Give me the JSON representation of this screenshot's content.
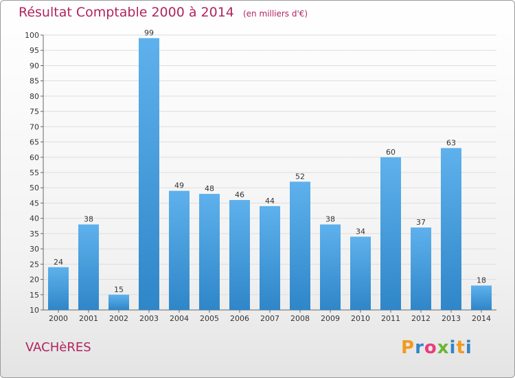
{
  "header": {
    "title": "Résultat Comptable 2000 à 2014",
    "unit": "(en milliers d'€)"
  },
  "footer": {
    "commune": "VACHèRES",
    "logo": "Proxiti"
  },
  "colors": {
    "title": "#b0245d",
    "bar_light": "#5eb1ec",
    "bar_dark": "#2f86c8"
  },
  "chart_data": {
    "type": "bar",
    "title": "Résultat Comptable 2000 à 2014",
    "subtitle": "(en milliers d'€)",
    "categories": [
      "2000",
      "2001",
      "2002",
      "2003",
      "2004",
      "2005",
      "2006",
      "2007",
      "2008",
      "2009",
      "2010",
      "2011",
      "2012",
      "2013",
      "2014"
    ],
    "values": [
      24,
      38,
      15,
      99,
      49,
      48,
      46,
      44,
      52,
      38,
      34,
      60,
      37,
      63,
      18
    ],
    "ylim": [
      10,
      100
    ],
    "yticks": [
      10,
      15,
      20,
      25,
      30,
      35,
      40,
      45,
      50,
      55,
      60,
      65,
      70,
      75,
      80,
      85,
      90,
      95,
      100
    ],
    "grid": true,
    "data_labels": true
  }
}
